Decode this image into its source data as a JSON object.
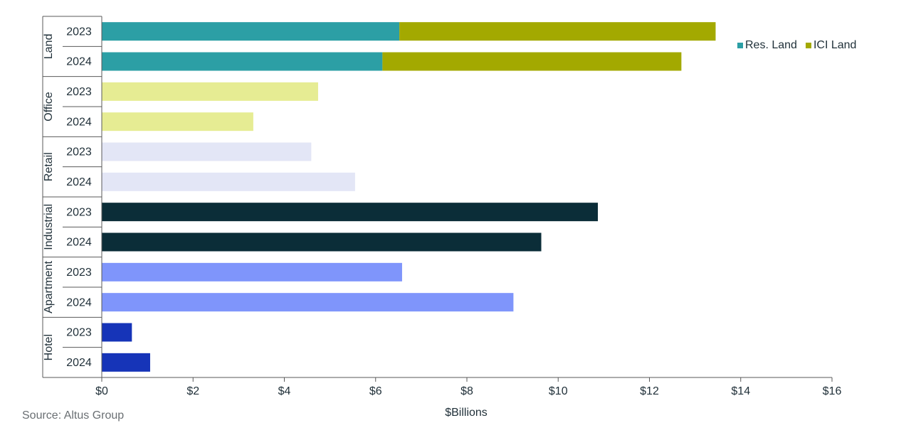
{
  "chart_data": {
    "type": "bar",
    "orientation": "horizontal",
    "stacked": true,
    "title": "",
    "xlabel": "$Billions",
    "ylabel": "",
    "xlim": [
      0,
      16
    ],
    "x_ticks": [
      "$0",
      "$2",
      "$4",
      "$6",
      "$8",
      "$10",
      "$12",
      "$14",
      "$16"
    ],
    "grid": false,
    "legend_position": "top-right",
    "groups": [
      {
        "name": "Land",
        "rows": [
          {
            "year": "2023",
            "segments": [
              {
                "series": "Res. Land",
                "value": 6.52,
                "color": "#2c9fa5"
              },
              {
                "series": "ICI Land",
                "value": 6.93,
                "color": "#a3a900"
              }
            ],
            "total": 13.45
          },
          {
            "year": "2024",
            "segments": [
              {
                "series": "Res. Land",
                "value": 6.15,
                "color": "#2c9fa5"
              },
              {
                "series": "ICI Land",
                "value": 6.55,
                "color": "#a3a900"
              }
            ],
            "total": 12.7
          }
        ]
      },
      {
        "name": "Office",
        "rows": [
          {
            "year": "2023",
            "segments": [
              {
                "series": "Office",
                "value": 4.74,
                "color": "#e6ec93"
              }
            ],
            "total": 4.74
          },
          {
            "year": "2024",
            "segments": [
              {
                "series": "Office",
                "value": 3.32,
                "color": "#e6ec93"
              }
            ],
            "total": 3.32
          }
        ]
      },
      {
        "name": "Retail",
        "rows": [
          {
            "year": "2023",
            "segments": [
              {
                "series": "Retail",
                "value": 4.59,
                "color": "#e3e6f6"
              }
            ],
            "total": 4.59
          },
          {
            "year": "2024",
            "segments": [
              {
                "series": "Retail",
                "value": 5.55,
                "color": "#e3e6f6"
              }
            ],
            "total": 5.55
          }
        ]
      },
      {
        "name": "Industrial",
        "rows": [
          {
            "year": "2023",
            "segments": [
              {
                "series": "Industrial",
                "value": 10.87,
                "color": "#0b2d38"
              }
            ],
            "total": 10.87
          },
          {
            "year": "2024",
            "segments": [
              {
                "series": "Industrial",
                "value": 9.63,
                "color": "#0b2d38"
              }
            ],
            "total": 9.63
          }
        ]
      },
      {
        "name": "Apartment",
        "rows": [
          {
            "year": "2023",
            "segments": [
              {
                "series": "Apartment",
                "value": 6.58,
                "color": "#7f95fb"
              }
            ],
            "total": 6.58
          },
          {
            "year": "2024",
            "segments": [
              {
                "series": "Apartment",
                "value": 9.02,
                "color": "#7f95fb"
              }
            ],
            "total": 9.02
          }
        ]
      },
      {
        "name": "Hotel",
        "rows": [
          {
            "year": "2023",
            "segments": [
              {
                "series": "Hotel",
                "value": 0.66,
                "color": "#1634b8"
              }
            ],
            "total": 0.66
          },
          {
            "year": "2024",
            "segments": [
              {
                "series": "Hotel",
                "value": 1.06,
                "color": "#1634b8"
              }
            ],
            "total": 1.06
          }
        ]
      }
    ],
    "legend": [
      {
        "label": "Res. Land",
        "color": "#2c9fa5"
      },
      {
        "label": "ICI Land",
        "color": "#a3a900"
      }
    ],
    "source": "Source:  Altus Group"
  }
}
